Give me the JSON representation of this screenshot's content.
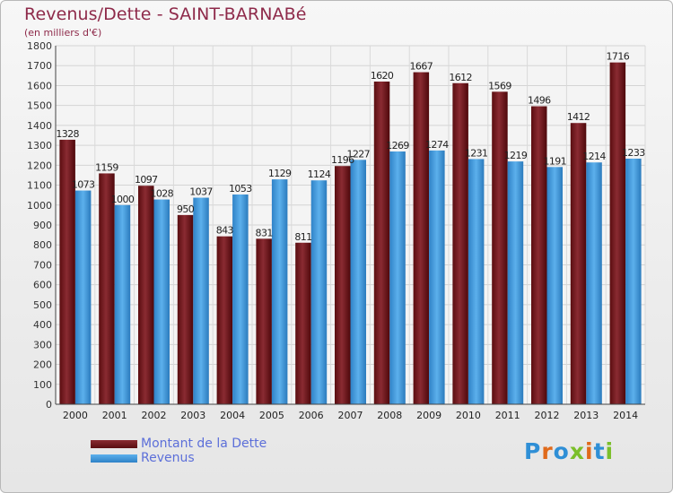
{
  "colors": {
    "debt": "#6e1a1f",
    "revenue": "#4aa3e6",
    "title": "#8e2a4a",
    "legend_text": "#5c6fd9"
  },
  "logo": {
    "text": "Proxiti",
    "letter_colors": [
      "#2f8fd6",
      "#e06a1b",
      "#2f8fd6",
      "#7bbf2a",
      "#e06a1b",
      "#2f8fd6",
      "#7bbf2a"
    ]
  },
  "chart_data": {
    "type": "bar",
    "title": "Revenus/Dette - SAINT-BARNABé",
    "subtitle": "(en milliers d'€)",
    "xlabel": "",
    "ylabel": "",
    "ylim": [
      0,
      1800
    ],
    "yticks": [
      0,
      100,
      200,
      300,
      400,
      500,
      600,
      700,
      800,
      900,
      1000,
      1100,
      1200,
      1300,
      1400,
      1500,
      1600,
      1700,
      1800
    ],
    "grid": true,
    "legend_position": "bottom-left",
    "categories": [
      "2000",
      "2001",
      "2002",
      "2003",
      "2004",
      "2005",
      "2006",
      "2007",
      "2008",
      "2009",
      "2010",
      "2011",
      "2012",
      "2013",
      "2014"
    ],
    "series": [
      {
        "name": "Montant de la Dette",
        "values": [
          1328,
          1159,
          1097,
          950,
          843,
          831,
          811,
          1196,
          1620,
          1667,
          1612,
          1569,
          1496,
          1412,
          1716
        ]
      },
      {
        "name": "Revenus",
        "values": [
          1073,
          1000,
          1028,
          1037,
          1053,
          1129,
          1124,
          1227,
          1269,
          1274,
          1231,
          1219,
          1191,
          1214,
          1233
        ]
      }
    ]
  }
}
